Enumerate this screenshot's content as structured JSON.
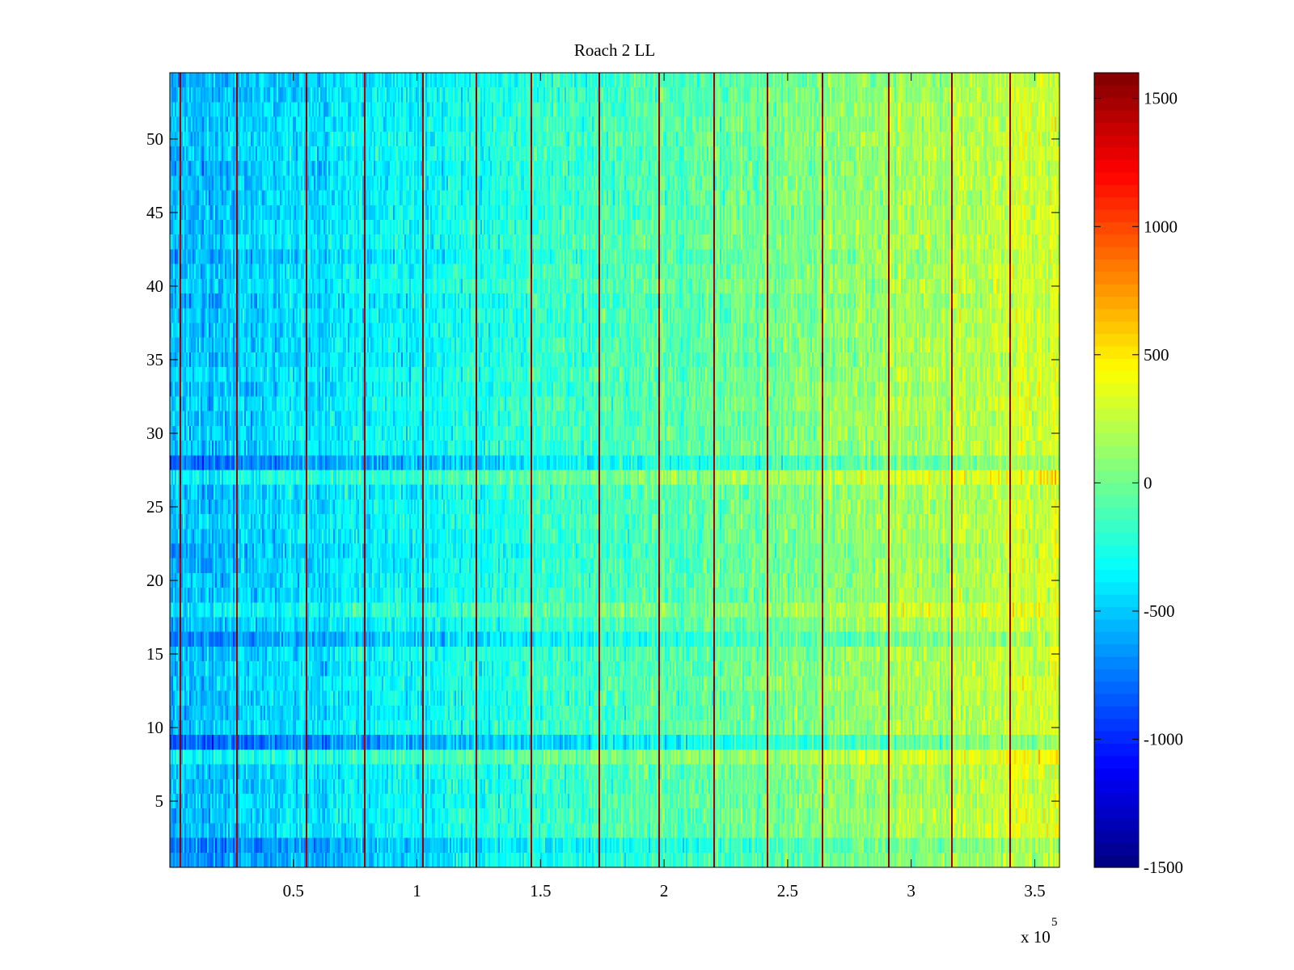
{
  "chart_data": {
    "type": "heatmap",
    "title": "Roach 2 LL",
    "xlabel": "",
    "ylabel": "",
    "x_range": [
      0,
      360000
    ],
    "y_range": [
      0.5,
      54.5
    ],
    "n_rows": 54,
    "x_ticks": [
      {
        "value": 50000,
        "label": "0.5"
      },
      {
        "value": 100000,
        "label": "1"
      },
      {
        "value": 150000,
        "label": "1.5"
      },
      {
        "value": 200000,
        "label": "2"
      },
      {
        "value": 250000,
        "label": "2.5"
      },
      {
        "value": 300000,
        "label": "3"
      },
      {
        "value": 350000,
        "label": "3.5"
      }
    ],
    "x_exponent_base": "x 10",
    "x_exponent_power": "5",
    "y_ticks": [
      {
        "value": 5,
        "label": "5"
      },
      {
        "value": 10,
        "label": "10"
      },
      {
        "value": 15,
        "label": "15"
      },
      {
        "value": 20,
        "label": "20"
      },
      {
        "value": 25,
        "label": "25"
      },
      {
        "value": 30,
        "label": "30"
      },
      {
        "value": 35,
        "label": "35"
      },
      {
        "value": 40,
        "label": "40"
      },
      {
        "value": 45,
        "label": "45"
      },
      {
        "value": 50,
        "label": "50"
      }
    ],
    "colorbar": {
      "range": [
        -1500,
        1600
      ],
      "colormap": "jet",
      "ticks": [
        {
          "value": 1500,
          "label": "1500"
        },
        {
          "value": 1000,
          "label": "1000"
        },
        {
          "value": 500,
          "label": "500"
        },
        {
          "value": 0,
          "label": "0"
        },
        {
          "value": -500,
          "label": "-500"
        },
        {
          "value": -1000,
          "label": "-1000"
        },
        {
          "value": -1500,
          "label": "-1500"
        }
      ]
    },
    "trend": {
      "description": "values rise from about -550 at left to about +300 at right",
      "start_value": -550,
      "end_value": 300
    },
    "spike_columns_x": [
      4000,
      27000,
      55000,
      79000,
      102000,
      124000,
      146000,
      174000,
      198000,
      220000,
      242000,
      264000,
      291000,
      317000,
      340000
    ],
    "spike_value": 1600,
    "highlight_rows": [
      {
        "row": 28,
        "offset": -250
      },
      {
        "row": 27,
        "offset": 200
      },
      {
        "row": 9,
        "offset": -300
      },
      {
        "row": 8,
        "offset": 200
      },
      {
        "row": 16,
        "offset": -200
      },
      {
        "row": 18,
        "offset": 150
      },
      {
        "row": 2,
        "offset": -250
      },
      {
        "row": 1,
        "offset": -150
      }
    ]
  }
}
